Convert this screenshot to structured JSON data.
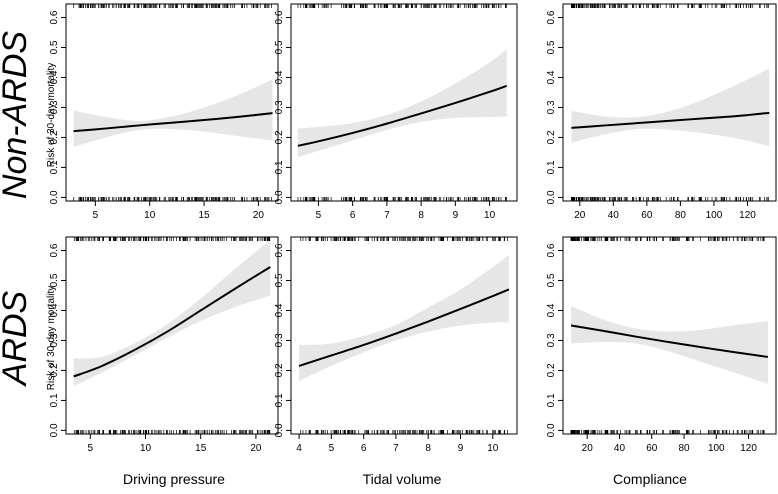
{
  "rows": [
    "Non-ARDS",
    "ARDS"
  ],
  "ylabel": "Risk of 30-day mortality",
  "xlabels": [
    "Driving pressure",
    "Tidal volume",
    "Compliance"
  ],
  "colors": {
    "band": "#e6e6e6",
    "line": "#000000",
    "frame": "#000000",
    "rug": "#000000"
  },
  "chart_data": [
    {
      "type": "line",
      "row": "Non-ARDS",
      "xlabel": "",
      "ylabel": "Risk of 30-day mortality",
      "xlim": [
        2.3,
        21.8
      ],
      "ylim": [
        -0.012,
        0.645
      ],
      "xticks": [
        5,
        10,
        15,
        20
      ],
      "yticks": [
        0.0,
        0.1,
        0.2,
        0.3,
        0.4,
        0.5,
        0.6
      ],
      "x": [
        3,
        6,
        9,
        12,
        15,
        18,
        21.3
      ],
      "y": [
        0.221,
        0.23,
        0.24,
        0.249,
        0.258,
        0.268,
        0.281
      ],
      "ci_lower": [
        0.168,
        0.2,
        0.225,
        0.228,
        0.22,
        0.205,
        0.19
      ],
      "ci_upper": [
        0.29,
        0.268,
        0.255,
        0.27,
        0.3,
        0.34,
        0.393
      ],
      "rug_x_range": [
        3,
        21.3
      ],
      "rug_density": "dense",
      "rug_seed": 11
    },
    {
      "type": "line",
      "row": "Non-ARDS",
      "xlabel": "",
      "ylabel": "",
      "xlim": [
        4.2,
        10.8
      ],
      "ylim": [
        -0.012,
        0.645
      ],
      "xticks": [
        5,
        6,
        7,
        8,
        9,
        10
      ],
      "yticks": [
        0.0,
        0.1,
        0.2,
        0.3,
        0.4,
        0.5,
        0.6
      ],
      "x": [
        4.4,
        5,
        6,
        7,
        8,
        9,
        10,
        10.5
      ],
      "y": [
        0.172,
        0.187,
        0.215,
        0.246,
        0.28,
        0.315,
        0.352,
        0.372
      ],
      "ci_lower": [
        0.135,
        0.155,
        0.19,
        0.225,
        0.252,
        0.265,
        0.268,
        0.27
      ],
      "ci_upper": [
        0.23,
        0.235,
        0.248,
        0.275,
        0.32,
        0.38,
        0.45,
        0.495
      ],
      "rug_x_range": [
        4.4,
        10.5
      ],
      "rug_density": "dense",
      "rug_seed": 23
    },
    {
      "type": "line",
      "row": "Non-ARDS",
      "xlabel": "",
      "ylabel": "",
      "xlim": [
        10,
        137
      ],
      "ylim": [
        -0.012,
        0.645
      ],
      "xticks": [
        20,
        40,
        60,
        80,
        100,
        120
      ],
      "yticks": [
        0.0,
        0.1,
        0.2,
        0.3,
        0.4,
        0.5,
        0.6
      ],
      "x": [
        15,
        35,
        55,
        75,
        95,
        115,
        133
      ],
      "y": [
        0.232,
        0.24,
        0.248,
        0.256,
        0.264,
        0.272,
        0.282
      ],
      "ci_lower": [
        0.182,
        0.21,
        0.228,
        0.225,
        0.213,
        0.195,
        0.17
      ],
      "ci_upper": [
        0.29,
        0.27,
        0.268,
        0.29,
        0.33,
        0.38,
        0.43
      ],
      "rug_x_range": [
        15,
        133
      ],
      "rug_density": "dense-left",
      "rug_seed": 37
    },
    {
      "type": "line",
      "row": "ARDS",
      "xlabel": "Driving pressure",
      "ylabel": "Risk of 30-day mortality",
      "xlim": [
        2.8,
        22
      ],
      "ylim": [
        -0.012,
        0.645
      ],
      "xticks": [
        5,
        10,
        15,
        20
      ],
      "yticks": [
        0.0,
        0.1,
        0.2,
        0.3,
        0.4,
        0.5,
        0.6
      ],
      "x": [
        3.5,
        6,
        9,
        12,
        15,
        18,
        21.3
      ],
      "y": [
        0.18,
        0.214,
        0.268,
        0.33,
        0.4,
        0.47,
        0.545
      ],
      "ci_lower": [
        0.148,
        0.192,
        0.25,
        0.31,
        0.365,
        0.41,
        0.45
      ],
      "ci_upper": [
        0.24,
        0.245,
        0.29,
        0.355,
        0.44,
        0.535,
        0.635
      ],
      "rug_x_range": [
        3.5,
        21.3
      ],
      "rug_density": "dense",
      "rug_seed": 41
    },
    {
      "type": "line",
      "row": "ARDS",
      "xlabel": "Tidal volume",
      "ylabel": "",
      "xlim": [
        3.75,
        10.75
      ],
      "ylim": [
        -0.012,
        0.645
      ],
      "xticks": [
        4,
        5,
        6,
        7,
        8,
        9,
        10
      ],
      "yticks": [
        0.0,
        0.1,
        0.2,
        0.3,
        0.4,
        0.5,
        0.6
      ],
      "x": [
        4,
        5,
        6,
        7,
        8,
        9,
        10,
        10.5
      ],
      "y": [
        0.215,
        0.25,
        0.285,
        0.323,
        0.363,
        0.405,
        0.448,
        0.47
      ],
      "ci_lower": [
        0.165,
        0.215,
        0.26,
        0.3,
        0.33,
        0.35,
        0.36,
        0.36
      ],
      "ci_upper": [
        0.285,
        0.29,
        0.315,
        0.352,
        0.41,
        0.47,
        0.545,
        0.585
      ],
      "rug_x_range": [
        4,
        10.5
      ],
      "rug_density": "dense",
      "rug_seed": 53
    },
    {
      "type": "line",
      "row": "ARDS",
      "xlabel": "Compliance",
      "ylabel": "",
      "xlim": [
        5,
        137
      ],
      "ylim": [
        -0.012,
        0.645
      ],
      "xticks": [
        20,
        40,
        60,
        80,
        100,
        120
      ],
      "yticks": [
        0.0,
        0.1,
        0.2,
        0.3,
        0.4,
        0.5,
        0.6
      ],
      "x": [
        10,
        30,
        50,
        70,
        90,
        110,
        132
      ],
      "y": [
        0.35,
        0.332,
        0.313,
        0.295,
        0.278,
        0.262,
        0.245
      ],
      "ci_lower": [
        0.29,
        0.295,
        0.29,
        0.265,
        0.23,
        0.195,
        0.155
      ],
      "ci_upper": [
        0.415,
        0.37,
        0.34,
        0.33,
        0.335,
        0.35,
        0.365
      ],
      "rug_x_range": [
        10,
        132
      ],
      "rug_density": "dense-left",
      "rug_seed": 67
    }
  ]
}
